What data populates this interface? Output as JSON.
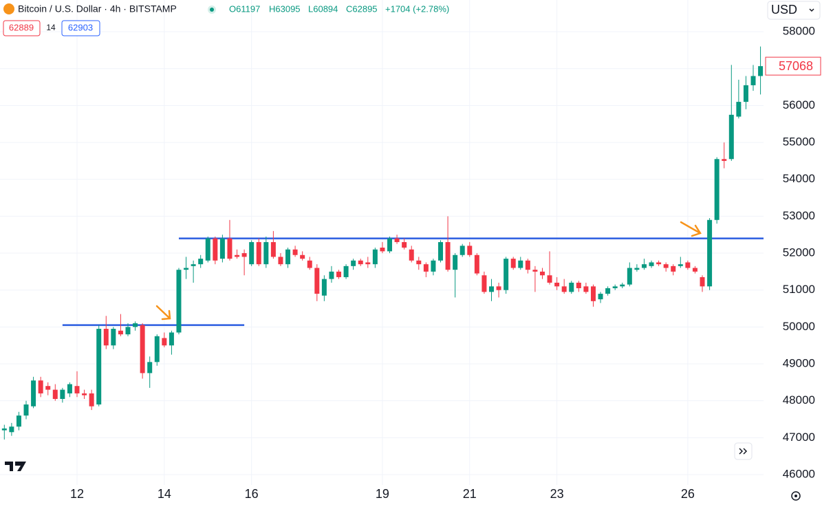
{
  "header": {
    "symbol": "Bitcoin / U.S. Dollar · 4h · BITSTAMP",
    "open": "O61197",
    "high": "H63095",
    "low": "L60894",
    "close": "C62895",
    "change": "+1704 (+2.78%)",
    "bid": "62889",
    "spread": "14",
    "ask": "62903",
    "currency": "USD"
  },
  "chart_data": {
    "type": "candlestick",
    "categories": [
      null,
      null,
      null,
      null,
      null,
      null,
      null,
      null,
      null,
      null,
      "12",
      null,
      null,
      null,
      null,
      null,
      null,
      null,
      null,
      null,
      null,
      null,
      "14",
      null,
      null,
      null,
      null,
      null,
      null,
      null,
      null,
      null,
      null,
      null,
      "16",
      null,
      null,
      null,
      null,
      null,
      null,
      null,
      null,
      null,
      null,
      null,
      null,
      null,
      null,
      null,
      null,
      null,
      "19",
      null,
      null,
      null,
      null,
      null,
      null,
      null,
      null,
      null,
      null,
      null,
      "21",
      null,
      null,
      null,
      null,
      null,
      null,
      null,
      null,
      null,
      null,
      null,
      "23",
      null,
      null,
      null,
      null,
      null,
      null,
      null,
      null,
      null,
      null,
      null,
      null,
      null,
      null,
      null,
      null,
      null,
      "26",
      null,
      null,
      null,
      null,
      null,
      null,
      null,
      null,
      null,
      null
    ],
    "open": [
      47200,
      47150,
      47300,
      47600,
      47850,
      48550,
      48400,
      48300,
      48050,
      48200,
      48400,
      48200,
      48200,
      47900,
      49950,
      49500,
      49900,
      49800,
      50000,
      50050,
      48750,
      49050,
      49700,
      49500,
      49850,
      51550,
      51650,
      51700,
      51800,
      52400,
      51850,
      52400,
      51950,
      52000,
      51700,
      52300,
      51700,
      52300,
      51900,
      51700,
      52100,
      51950,
      51800,
      51600,
      50850,
      51300,
      51500,
      51350,
      51650,
      51800,
      51750,
      51700,
      52150,
      52050,
      52400,
      52300,
      52100,
      51800,
      51700,
      51500,
      51800,
      52300,
      51550,
      51950,
      52200,
      51950,
      51400,
      50950,
      51100,
      51000,
      51850,
      51600,
      51800,
      51550,
      51500,
      51400,
      51200,
      51100,
      50950,
      51200,
      51100,
      51100,
      50750,
      50900,
      51050,
      51100,
      51150,
      51550,
      51600,
      51650,
      51750,
      51700,
      51650,
      51650,
      51750,
      51600,
      51350,
      51100,
      52900,
      54550,
      54550,
      55700,
      56100,
      56550,
      56800
    ],
    "high": [
      47350,
      47400,
      47700,
      48000,
      48650,
      48650,
      48500,
      48450,
      48350,
      48500,
      48800,
      48300,
      48300,
      50050,
      50300,
      50000,
      50350,
      50100,
      50150,
      50100,
      49200,
      49800,
      49850,
      49900,
      51600,
      51900,
      51800,
      51950,
      52450,
      52450,
      52500,
      52900,
      52100,
      52100,
      52350,
      52400,
      52450,
      52600,
      52000,
      52150,
      52200,
      52050,
      51900,
      51700,
      51400,
      51650,
      51550,
      51700,
      51850,
      51850,
      51900,
      52150,
      52300,
      52450,
      52500,
      52400,
      52200,
      51900,
      51750,
      51850,
      52350,
      53000,
      52000,
      52250,
      52300,
      52000,
      51500,
      51300,
      51200,
      51900,
      51900,
      51900,
      51850,
      51650,
      51600,
      52050,
      51350,
      51300,
      51250,
      51250,
      51200,
      51150,
      50950,
      51100,
      51150,
      51200,
      51750,
      51700,
      51850,
      51800,
      51800,
      51750,
      51700,
      51900,
      51800,
      51650,
      51400,
      52950,
      54600,
      55000,
      57100,
      56700,
      56800,
      57100,
      57600
    ],
    "low": [
      46950,
      47050,
      47200,
      47500,
      47800,
      48100,
      48150,
      48000,
      47950,
      48100,
      48100,
      48050,
      47750,
      47850,
      49400,
      49400,
      49750,
      49750,
      49900,
      48600,
      48350,
      48950,
      49450,
      49250,
      49800,
      51300,
      51200,
      51600,
      51750,
      51700,
      51750,
      51800,
      51850,
      51400,
      51650,
      51650,
      51600,
      51850,
      51650,
      51600,
      51900,
      51800,
      51550,
      50700,
      50700,
      51200,
      51300,
      51300,
      51550,
      51650,
      51600,
      51600,
      52000,
      52000,
      52250,
      52100,
      51750,
      51550,
      51350,
      51400,
      51750,
      51500,
      50800,
      51900,
      51900,
      51400,
      50900,
      50700,
      50800,
      50900,
      51550,
      51550,
      51450,
      50950,
      51300,
      51150,
      51000,
      50900,
      50900,
      50950,
      50900,
      50550,
      50650,
      50850,
      51000,
      51050,
      51100,
      51500,
      51550,
      51600,
      51650,
      51500,
      51400,
      51600,
      51550,
      51450,
      50950,
      51000,
      52800,
      54300,
      54500,
      55650,
      55900,
      56400,
      56300
    ],
    "close": [
      47250,
      47300,
      47600,
      47900,
      48550,
      48200,
      48300,
      48050,
      48300,
      48450,
      48200,
      48150,
      47850,
      49950,
      49500,
      49950,
      49800,
      50000,
      50100,
      48750,
      49050,
      49750,
      49500,
      49850,
      51550,
      51600,
      51700,
      51850,
      52400,
      51800,
      52400,
      51850,
      51900,
      51900,
      52300,
      51700,
      52300,
      51900,
      51700,
      52100,
      51950,
      51850,
      51600,
      50900,
      51300,
      51500,
      51350,
      51650,
      51800,
      51700,
      51700,
      52100,
      52050,
      52400,
      52300,
      52150,
      51800,
      51700,
      51500,
      51800,
      52300,
      51550,
      51950,
      52200,
      51950,
      51450,
      50950,
      51100,
      51000,
      51850,
      51600,
      51800,
      51550,
      51500,
      51400,
      51200,
      51100,
      50950,
      51200,
      51050,
      50950,
      50700,
      50900,
      51050,
      51100,
      51150,
      51600,
      51600,
      51700,
      51750,
      51700,
      51600,
      51500,
      51700,
      51600,
      51500,
      51100,
      52900,
      54550,
      54500,
      55750,
      56100,
      56550,
      56800,
      57068
    ],
    "up_color": "#089981",
    "down_color": "#f23645",
    "hlines": [
      {
        "value": 50050,
        "from": 8,
        "to": 33,
        "color": "#2a5ce0"
      },
      {
        "value": 52400,
        "from": 24,
        "to": 104,
        "color": "#2a5ce0"
      }
    ],
    "ylim": [
      45720,
      58860
    ],
    "yticks": [
      46000,
      47000,
      48000,
      49000,
      50000,
      51000,
      52000,
      53000,
      54000,
      55000,
      56000,
      57000,
      58000
    ],
    "grid": true
  }
}
